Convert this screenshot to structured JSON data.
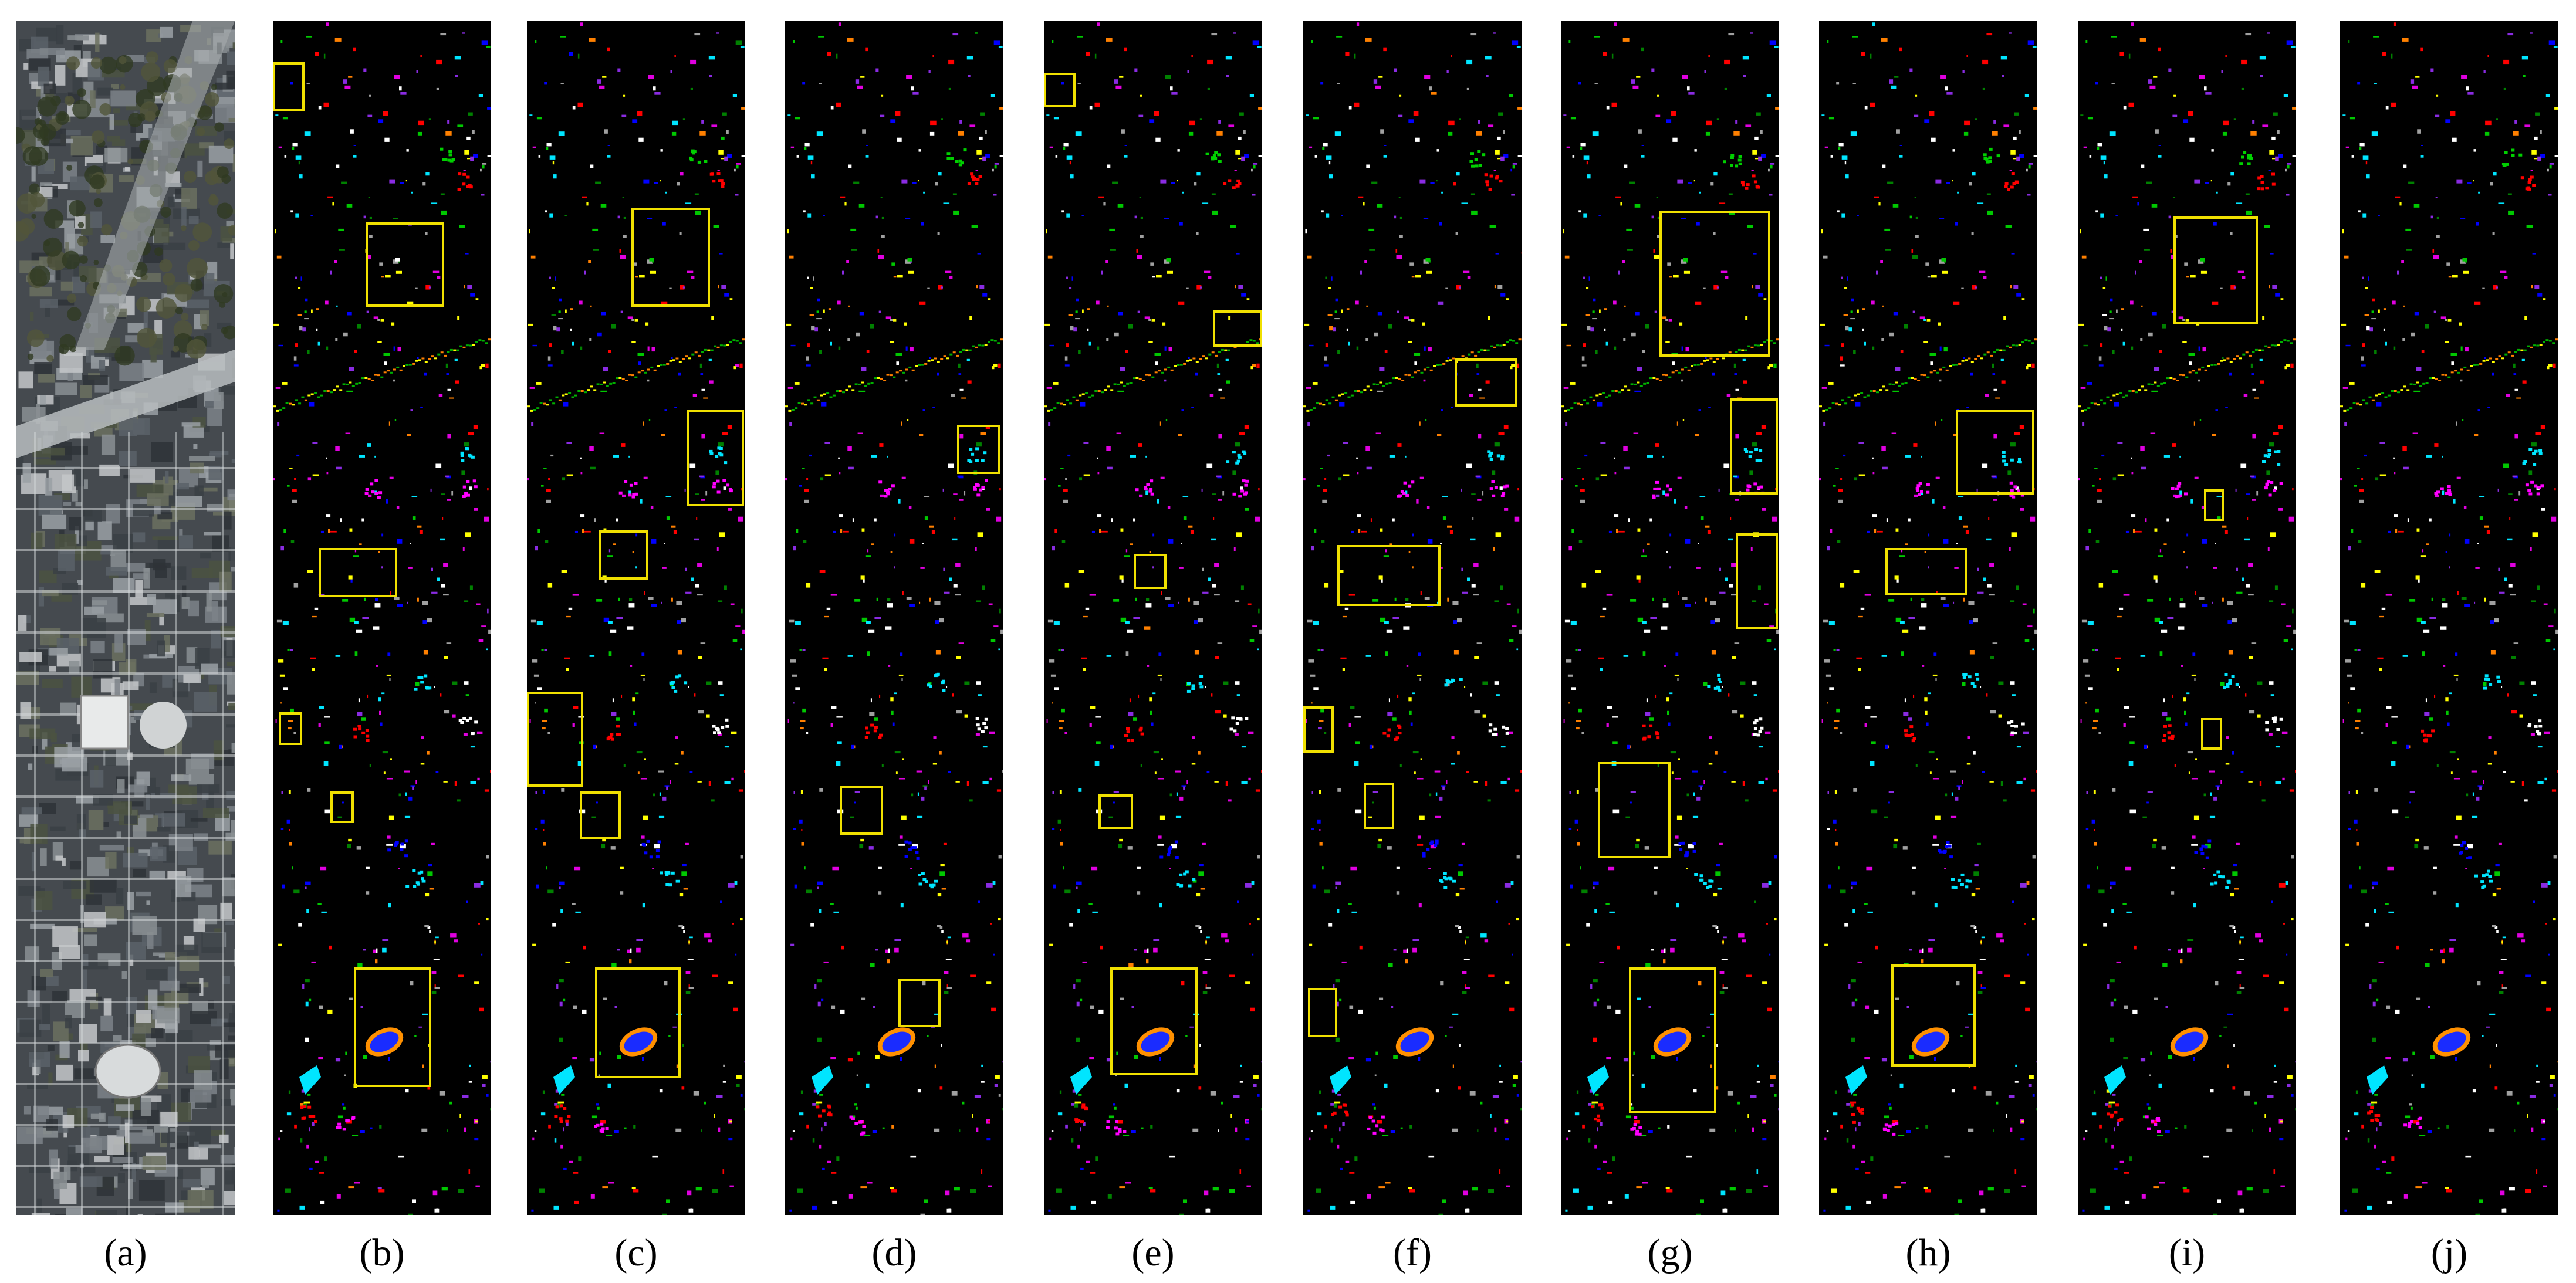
{
  "figure": {
    "panels": [
      {
        "id": "a",
        "label": "(a)",
        "kind": "rgb-image"
      },
      {
        "id": "b",
        "label": "(b)",
        "kind": "classification-map"
      },
      {
        "id": "c",
        "label": "(c)",
        "kind": "classification-map"
      },
      {
        "id": "d",
        "label": "(d)",
        "kind": "classification-map"
      },
      {
        "id": "e",
        "label": "(e)",
        "kind": "classification-map"
      },
      {
        "id": "f",
        "label": "(f)",
        "kind": "classification-map"
      },
      {
        "id": "g",
        "label": "(g)",
        "kind": "classification-map"
      },
      {
        "id": "h",
        "label": "(h)",
        "kind": "classification-map"
      },
      {
        "id": "i",
        "label": "(i)",
        "kind": "classification-map"
      },
      {
        "id": "j",
        "label": "(j)",
        "kind": "classification-map"
      }
    ],
    "colors": {
      "highlight_box": "#f0e000",
      "map_background": "#000000",
      "class_colors": [
        "#00c800",
        "#ff0000",
        "#0000ff",
        "#00e5ff",
        "#e000e0",
        "#ffff00",
        "#ff8000",
        "#ffffff",
        "#a0a0a0",
        "#008000",
        "#8a2be2"
      ]
    }
  }
}
